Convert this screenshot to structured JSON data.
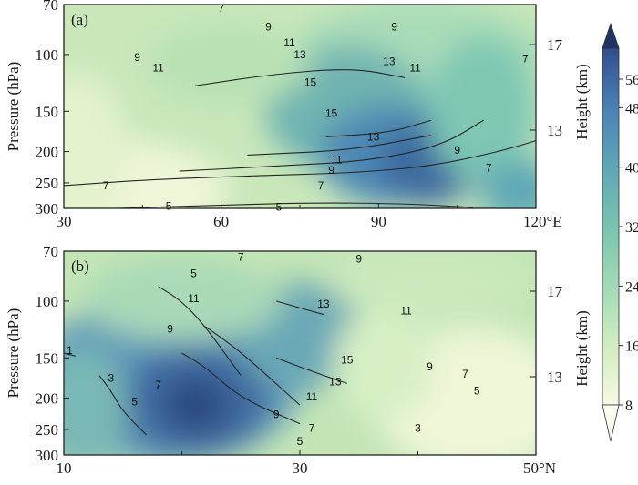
{
  "chart_data": [
    {
      "type": "heatmap",
      "panel_label": "(a)",
      "x_ticks": [
        "30",
        "60",
        "90",
        "120°E"
      ],
      "x_range": [
        30,
        120
      ],
      "left_axis_label": "Pressure (hPa)",
      "left_ticks": [
        "70",
        "100",
        "150",
        "200",
        "250",
        "300"
      ],
      "right_axis_label": "Height (km)",
      "right_ticks": [
        "17",
        "13"
      ],
      "shading_max": {
        "lon": 95,
        "p": 200,
        "value": 52
      },
      "contours": [
        {
          "level": "5",
          "x": [
            40,
            60,
            78,
            95,
            108
          ],
          "p": [
            300,
            293,
            288,
            290,
            298
          ]
        },
        {
          "level": "7",
          "x": [
            30,
            45,
            65,
            85,
            100,
            113,
            120
          ],
          "p": [
            255,
            245,
            238,
            233,
            222,
            200,
            185
          ]
        },
        {
          "level": "9",
          "x": [
            52,
            70,
            88,
            102,
            110
          ],
          "p": [
            230,
            222,
            214,
            192,
            160
          ]
        },
        {
          "level": "11",
          "x": [
            65,
            85,
            100
          ],
          "p": [
            205,
            198,
            178
          ]
        },
        {
          "level": "13",
          "x": [
            80,
            92,
            100
          ],
          "p": [
            180,
            175,
            160
          ]
        },
        {
          "level": "15",
          "x": [
            55,
            70,
            85,
            95
          ],
          "p": [
            125,
            115,
            110,
            118
          ]
        }
      ],
      "contour_labels": [
        {
          "text": "7",
          "x": 60,
          "p": 72
        },
        {
          "text": "9",
          "x": 69,
          "p": 82
        },
        {
          "text": "11",
          "x": 73,
          "p": 92
        },
        {
          "text": "13",
          "x": 75,
          "p": 100
        },
        {
          "text": "15",
          "x": 77,
          "p": 122
        },
        {
          "text": "15",
          "x": 81,
          "p": 152
        },
        {
          "text": "13",
          "x": 89,
          "p": 180
        },
        {
          "text": "11",
          "x": 82,
          "p": 212
        },
        {
          "text": "9",
          "x": 81,
          "p": 228
        },
        {
          "text": "7",
          "x": 79,
          "p": 255
        },
        {
          "text": "7",
          "x": 38,
          "p": 255
        },
        {
          "text": "5",
          "x": 50,
          "p": 295
        },
        {
          "text": "5",
          "x": 71,
          "p": 297
        },
        {
          "text": "9",
          "x": 93,
          "p": 82
        },
        {
          "text": "13",
          "x": 92,
          "p": 105
        },
        {
          "text": "11",
          "x": 97,
          "p": 110
        },
        {
          "text": "9",
          "x": 105,
          "p": 198
        },
        {
          "text": "7",
          "x": 111,
          "p": 225
        },
        {
          "text": "7",
          "x": 118,
          "p": 103
        },
        {
          "text": "9",
          "x": 44,
          "p": 102
        },
        {
          "text": "11",
          "x": 48,
          "p": 110
        }
      ]
    },
    {
      "type": "heatmap",
      "panel_label": "(b)",
      "x_ticks": [
        "10",
        "30",
        "50°N"
      ],
      "x_range": [
        10,
        50
      ],
      "left_axis_label": "Pressure (hPa)",
      "left_ticks": [
        "70",
        "100",
        "150",
        "200",
        "250",
        "300"
      ],
      "right_axis_label": "Height (km)",
      "right_ticks": [
        "17",
        "13"
      ],
      "shading_max": {
        "lat": 21,
        "p": 210,
        "value": 56
      },
      "contours": [
        {
          "level": "1",
          "x": [
            10,
            11
          ],
          "p": [
            145,
            148
          ]
        },
        {
          "level": "3",
          "x": [
            13,
            14,
            15,
            17
          ],
          "p": [
            170,
            190,
            220,
            260
          ]
        },
        {
          "level": "5",
          "x": [
            18,
            20,
            22,
            25
          ],
          "p": [
            90,
            100,
            120,
            170
          ]
        },
        {
          "level": "7",
          "x": [
            20,
            22,
            25,
            30
          ],
          "p": [
            145,
            160,
            200,
            240
          ]
        },
        {
          "level": "9",
          "x": [
            22,
            24,
            26,
            30
          ],
          "p": [
            120,
            135,
            155,
            210
          ]
        },
        {
          "level": "11",
          "x": [
            28,
            30,
            32,
            34
          ],
          "p": [
            150,
            160,
            170,
            180
          ]
        },
        {
          "level": "13",
          "x": [
            28,
            30,
            32
          ],
          "p": [
            100,
            105,
            110
          ]
        }
      ],
      "contour_labels": [
        {
          "text": "5",
          "x": 30,
          "p": 272
        },
        {
          "text": "7",
          "x": 31,
          "p": 248
        },
        {
          "text": "9",
          "x": 28,
          "p": 225
        },
        {
          "text": "11",
          "x": 31,
          "p": 198
        },
        {
          "text": "13",
          "x": 33,
          "p": 178
        },
        {
          "text": "15",
          "x": 34,
          "p": 152
        },
        {
          "text": "13",
          "x": 32,
          "p": 102
        },
        {
          "text": "11",
          "x": 21,
          "p": 98
        },
        {
          "text": "9",
          "x": 19,
          "p": 122
        },
        {
          "text": "7",
          "x": 18,
          "p": 182
        },
        {
          "text": "5",
          "x": 21,
          "p": 82
        },
        {
          "text": "7",
          "x": 25,
          "p": 73
        },
        {
          "text": "9",
          "x": 35,
          "p": 74
        },
        {
          "text": "11",
          "x": 39,
          "p": 107
        },
        {
          "text": "9",
          "x": 41,
          "p": 160
        },
        {
          "text": "7",
          "x": 44,
          "p": 168
        },
        {
          "text": "5",
          "x": 45,
          "p": 190
        },
        {
          "text": "3",
          "x": 40,
          "p": 248
        },
        {
          "text": "3",
          "x": 14,
          "p": 173
        },
        {
          "text": "5",
          "x": 16,
          "p": 205
        },
        {
          "text": "1",
          "x": 10.5,
          "p": 142
        }
      ]
    }
  ],
  "colorbar": {
    "ticks": [
      "56",
      "48",
      "40",
      "32",
      "24",
      "16",
      "8"
    ],
    "range": [
      8,
      56
    ],
    "extend": "both",
    "colors": [
      "#f7f9e5",
      "#d4eec2",
      "#a5dbb6",
      "#78c3b0",
      "#5fa8b6",
      "#4c84b6",
      "#324f8b",
      "#1f3462"
    ]
  }
}
